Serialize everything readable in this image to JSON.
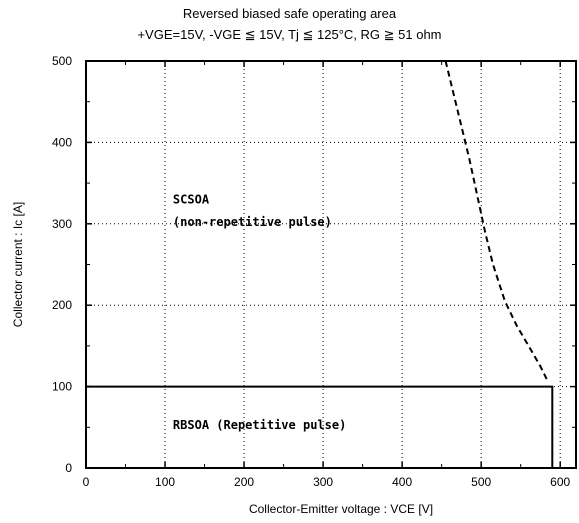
{
  "chart_data": {
    "type": "line",
    "title": "Reversed biased safe operating area",
    "subtitle": "+VGE=15V,  -VGE ≦ 15V,  Tj ≦ 125°C,  RG ≧ 51 ohm",
    "xlabel": "Collector-Emitter voltage  :  VCE [V]",
    "ylabel": "Collector current  :  Ic [A]",
    "xlim": [
      0,
      620
    ],
    "ylim": [
      0,
      500
    ],
    "x_ticks": [
      0,
      100,
      200,
      300,
      400,
      500,
      600
    ],
    "y_ticks": [
      0,
      100,
      200,
      300,
      400,
      500
    ],
    "grid": true,
    "series": [
      {
        "name": "RBSOA (Repetitive pulse)",
        "style": "solid",
        "x": [
          0,
          590,
          590
        ],
        "y": [
          100,
          100,
          0
        ]
      },
      {
        "name": "SCSOA (non-repetitive pulse)",
        "style": "dashed",
        "x": [
          455,
          465,
          475,
          485,
          495,
          505,
          515,
          530,
          545,
          560,
          575,
          585
        ],
        "y": [
          500,
          460,
          420,
          380,
          335,
          290,
          250,
          205,
          175,
          150,
          125,
          105
        ]
      }
    ],
    "annotations": [
      {
        "text": "SCSOA",
        "x": 110,
        "y": 325
      },
      {
        "text": "(non-repetitive pulse)",
        "x": 110,
        "y": 297
      },
      {
        "text": "RBSOA (Repetitive pulse)",
        "x": 110,
        "y": 48
      }
    ]
  }
}
